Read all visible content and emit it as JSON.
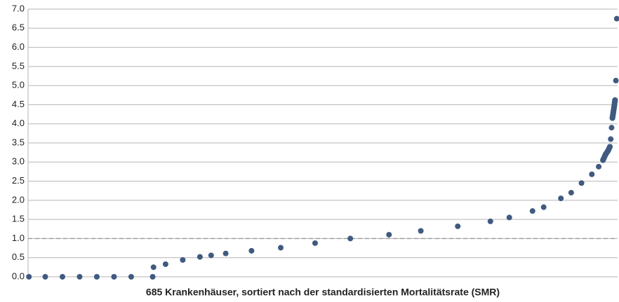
{
  "chart_data": {
    "type": "scatter",
    "x_label": "685 Krankenhäuser, sortiert nach der standardisierten Mortalitätsrate (SMR)",
    "color": "#405a80",
    "x": [
      1,
      20,
      40,
      60,
      80,
      100,
      120,
      145,
      146,
      160,
      180,
      200,
      213,
      230,
      260,
      294,
      334,
      375,
      420,
      457,
      500,
      538,
      560,
      587,
      600,
      620,
      632,
      644,
      656,
      664,
      669,
      672,
      675,
      676,
      677,
      678,
      679,
      680,
      681,
      682,
      683,
      684,
      685
    ],
    "values": [
      0,
      0,
      0,
      0,
      0,
      0,
      0,
      0,
      0.25,
      0.33,
      0.44,
      0.52,
      0.56,
      0.61,
      0.68,
      0.76,
      0.88,
      1.0,
      1.1,
      1.2,
      1.32,
      1.45,
      1.55,
      1.72,
      1.82,
      2.05,
      2.2,
      2.45,
      2.68,
      2.88,
      3.05,
      3.2,
      3.3,
      3.35,
      3.4,
      3.6,
      3.9,
      4.15,
      4.3,
      4.45,
      4.62,
      5.13,
      6.75
    ],
    "xlim": [
      0,
      686
    ],
    "ylim": [
      0,
      7
    ],
    "yticks": [
      {
        "value": 0,
        "label": "0.0"
      },
      {
        "value": 0.5,
        "label": "0.5"
      },
      {
        "value": 1,
        "label": "1.0"
      },
      {
        "value": 1.5,
        "label": "1.5"
      },
      {
        "value": 2,
        "label": "2.0"
      },
      {
        "value": 2.5,
        "label": "2.5"
      },
      {
        "value": 3,
        "label": "3.0"
      },
      {
        "value": 3.5,
        "label": "3.5"
      },
      {
        "value": 4,
        "label": "4.0"
      },
      {
        "value": 4.5,
        "label": "4.5"
      },
      {
        "value": 5,
        "label": "5.0"
      },
      {
        "value": 5.5,
        "label": "5.5"
      },
      {
        "value": 6,
        "label": "6.0"
      },
      {
        "value": 6.5,
        "label": "6.5"
      },
      {
        "value": 7,
        "label": "7.0"
      }
    ],
    "grid": true,
    "reference_line": 1
  }
}
